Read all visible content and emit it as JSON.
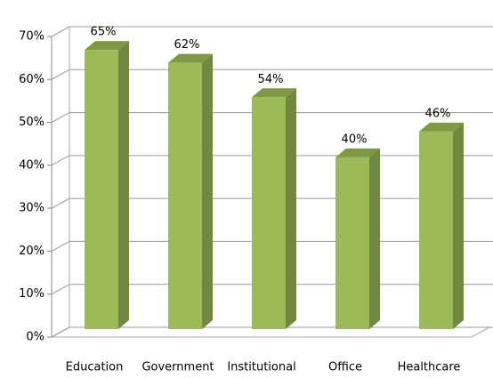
{
  "chart_data": {
    "type": "bar3d",
    "categories": [
      "Education",
      "Government",
      "Institutional",
      "Office",
      "Healthcare"
    ],
    "values": [
      65,
      62,
      54,
      40,
      46
    ],
    "value_labels": [
      "65%",
      "62%",
      "54%",
      "40%",
      "46%"
    ],
    "color": "#9bbb59",
    "ylim": [
      0,
      70
    ],
    "yticks": [
      {
        "value": 0,
        "label": "0%"
      },
      {
        "value": 10,
        "label": "10%"
      },
      {
        "value": 20,
        "label": "20%"
      },
      {
        "value": 30,
        "label": "30%"
      },
      {
        "value": 40,
        "label": "40%"
      },
      {
        "value": 50,
        "label": "50%"
      },
      {
        "value": 60,
        "label": "60%"
      },
      {
        "value": 70,
        "label": "70%"
      }
    ],
    "grid": true
  }
}
